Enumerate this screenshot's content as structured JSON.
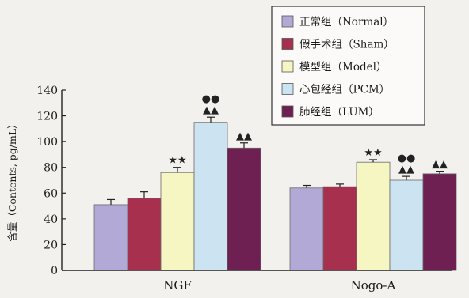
{
  "chart_data": {
    "type": "bar",
    "ylabel": "含量（Contents, pg/mL）",
    "ylim": [
      0,
      140
    ],
    "yticks": [
      0,
      20,
      40,
      60,
      80,
      100,
      120,
      140
    ],
    "categories": [
      "NGF",
      "Nogo-A"
    ],
    "legend_position": "top-right",
    "series": [
      {
        "name": "正常组（Normal）",
        "color": "#b3a9d6",
        "values": [
          51,
          64
        ],
        "errors": [
          4,
          2
        ],
        "marks": [
          "",
          ""
        ]
      },
      {
        "name": "假手术组（Sham）",
        "color": "#a8304f",
        "values": [
          56,
          65
        ],
        "errors": [
          5,
          2
        ],
        "marks": [
          "",
          ""
        ]
      },
      {
        "name": "模型组（Model）",
        "color": "#f6f6c3",
        "values": [
          76,
          84
        ],
        "errors": [
          4,
          2
        ],
        "marks": [
          "★★",
          "★★"
        ]
      },
      {
        "name": "心包经组（PCM）",
        "color": "#cce4f1",
        "values": [
          115,
          70
        ],
        "errors": [
          4,
          3
        ],
        "marks": [
          "●●\n▲▲",
          "●●\n▲▲"
        ]
      },
      {
        "name": "肺经组（LUM）",
        "color": "#6e2052",
        "values": [
          95,
          75
        ],
        "errors": [
          4,
          2
        ],
        "marks": [
          "▲▲",
          "▲▲"
        ]
      }
    ]
  }
}
